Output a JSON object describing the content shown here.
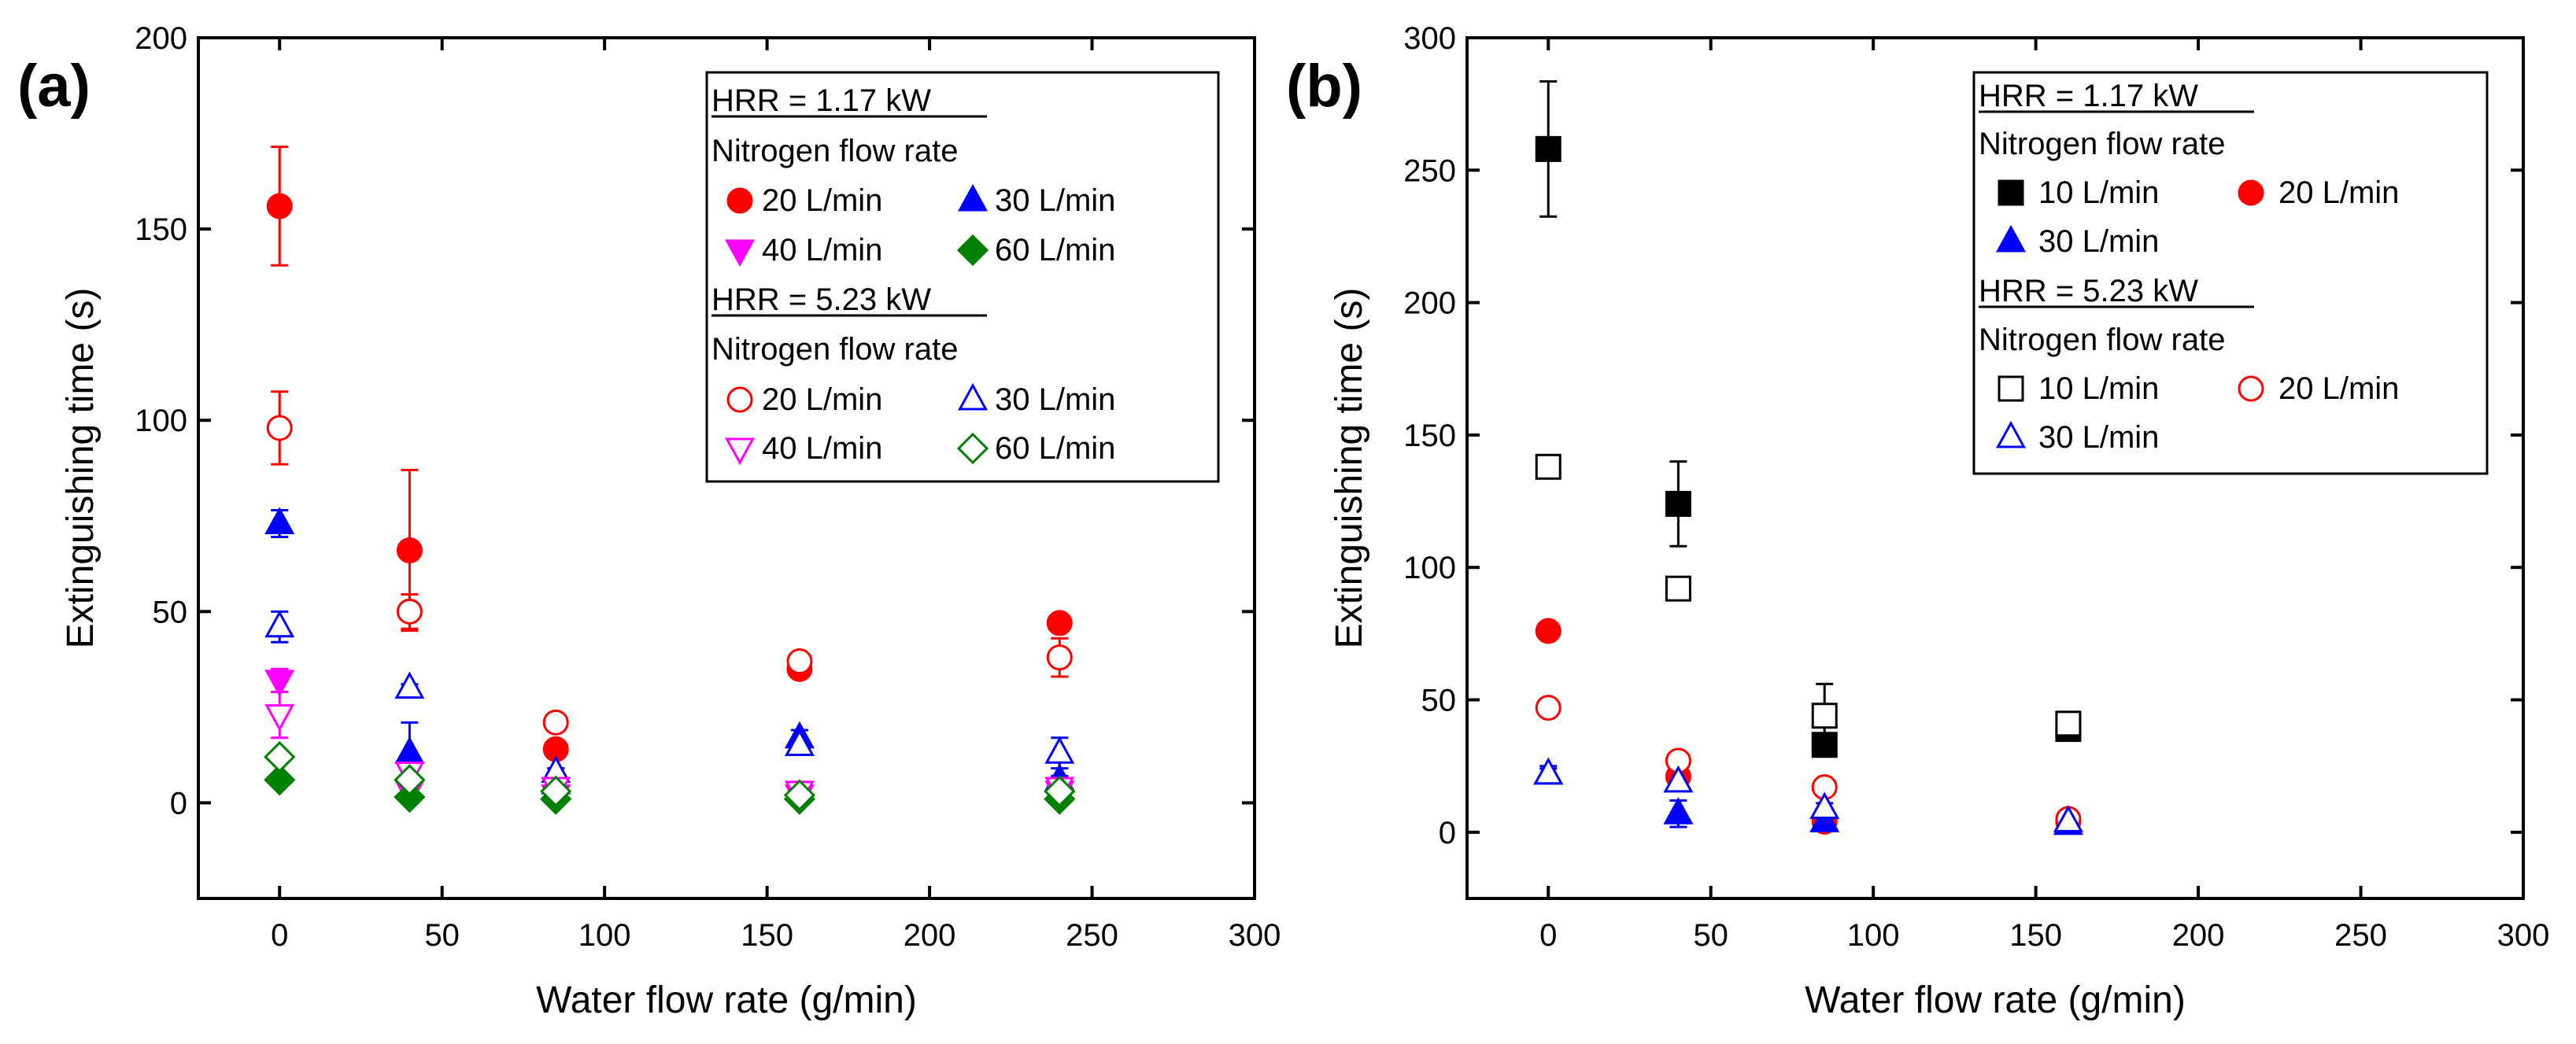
{
  "chart_data": [
    {
      "type": "scatter",
      "panel_label": "(a)",
      "xlabel": "Water flow rate (g/min)",
      "ylabel": "Extinguishing time (s)",
      "xlim": [
        -25,
        300
      ],
      "ylim": [
        -25,
        200
      ],
      "xticks": [
        0,
        50,
        100,
        150,
        200,
        250,
        300
      ],
      "yticks": [
        0,
        50,
        100,
        150,
        200
      ],
      "legend_position": "top-right",
      "legend": {
        "group1_title": "HRR = 1.17 kW",
        "group1_subtitle": "Nitrogen flow rate",
        "group2_title": "HRR = 5.23 kW",
        "group2_subtitle": "Nitrogen flow rate"
      },
      "series": [
        {
          "name": "20 L/min",
          "group": 1,
          "marker": "circle",
          "filled": true,
          "color": "#ff0000",
          "x": [
            0,
            40,
            85,
            160,
            240
          ],
          "y": [
            156,
            66,
            14,
            35,
            47
          ],
          "err": [
            15.5,
            21,
            2,
            2,
            2
          ]
        },
        {
          "name": "30 L/min",
          "group": 1,
          "marker": "triangle-up",
          "filled": true,
          "color": "#0000ff",
          "x": [
            0,
            40,
            85,
            160,
            240
          ],
          "y": [
            73,
            13,
            5,
            17,
            6
          ],
          "err": [
            3.5,
            8,
            1,
            2,
            1
          ]
        },
        {
          "name": "40 L/min",
          "group": 1,
          "marker": "triangle-down",
          "filled": true,
          "color": "#ff00ff",
          "x": [
            0,
            40,
            85,
            160,
            240
          ],
          "y": [
            32,
            3,
            2,
            2,
            3
          ],
          "err": [
            3,
            1,
            0.5,
            0.5,
            0.5
          ]
        },
        {
          "name": "60 L/min",
          "group": 1,
          "marker": "diamond",
          "filled": true,
          "color": "#008000",
          "x": [
            0,
            40,
            85,
            160,
            240
          ],
          "y": [
            6,
            1.5,
            1,
            1,
            1
          ],
          "err": [
            1,
            0.5,
            0.5,
            0.5,
            0.5
          ]
        },
        {
          "name": "20 L/min",
          "group": 2,
          "marker": "circle",
          "filled": false,
          "color": "#ff0000",
          "x": [
            0,
            40,
            85,
            160,
            240
          ],
          "y": [
            98,
            50,
            21,
            37,
            38
          ],
          "err": [
            9.5,
            4.5,
            2,
            2,
            5
          ]
        },
        {
          "name": "30 L/min",
          "group": 2,
          "marker": "triangle-up",
          "filled": false,
          "color": "#0000ff",
          "x": [
            0,
            40,
            85,
            160,
            240
          ],
          "y": [
            46,
            30,
            8,
            15,
            13
          ],
          "err": [
            4,
            1,
            1,
            1.5,
            4
          ]
        },
        {
          "name": "40 L/min",
          "group": 2,
          "marker": "triangle-down",
          "filled": false,
          "color": "#ff00ff",
          "x": [
            0,
            40,
            85,
            160,
            240
          ],
          "y": [
            23,
            8,
            4,
            3,
            4
          ],
          "err": [
            6,
            2,
            1,
            1,
            1
          ]
        },
        {
          "name": "60 L/min",
          "group": 2,
          "marker": "diamond",
          "filled": false,
          "color": "#008000",
          "x": [
            0,
            40,
            85,
            160,
            240
          ],
          "y": [
            12,
            6,
            3,
            2,
            3
          ],
          "err": [
            1,
            1,
            0.5,
            0.5,
            0.5
          ]
        }
      ]
    },
    {
      "type": "scatter",
      "panel_label": "(b)",
      "xlabel": "Water flow rate (g/min)",
      "ylabel": "Extinguishing time (s)",
      "xlim": [
        -25,
        300
      ],
      "ylim": [
        -25,
        300
      ],
      "xticks": [
        0,
        50,
        100,
        150,
        200,
        250,
        300
      ],
      "yticks": [
        0,
        50,
        100,
        150,
        200,
        250,
        300
      ],
      "legend_position": "top-right",
      "legend": {
        "group1_title": "HRR = 1.17 kW",
        "group1_subtitle": "Nitrogen flow rate",
        "group2_title": "HRR = 5.23 kW",
        "group2_subtitle": "Nitrogen flow rate"
      },
      "series": [
        {
          "name": "10 L/min",
          "group": 1,
          "marker": "square",
          "filled": true,
          "color": "#000000",
          "x": [
            0,
            40,
            85,
            160
          ],
          "y": [
            258,
            124,
            33,
            39
          ],
          "err": [
            25.5,
            16,
            3,
            2
          ]
        },
        {
          "name": "20 L/min",
          "group": 1,
          "marker": "circle",
          "filled": true,
          "color": "#ff0000",
          "x": [
            0,
            40,
            85,
            160
          ],
          "y": [
            76,
            21,
            4,
            4
          ],
          "err": [
            3,
            2,
            1,
            1
          ]
        },
        {
          "name": "30 L/min",
          "group": 1,
          "marker": "triangle-up",
          "filled": true,
          "color": "#0000ff",
          "x": [
            0,
            40,
            85,
            160
          ],
          "y": [
            22,
            7,
            4,
            3
          ],
          "err": [
            2,
            5,
            2,
            1
          ]
        },
        {
          "name": "10 L/min",
          "group": 2,
          "marker": "square",
          "filled": false,
          "color": "#000000",
          "x": [
            0,
            40,
            85,
            160
          ],
          "y": [
            138,
            92,
            44,
            41
          ],
          "err": [
            3,
            4,
            12,
            2
          ]
        },
        {
          "name": "20 L/min",
          "group": 2,
          "marker": "circle",
          "filled": false,
          "color": "#ff0000",
          "x": [
            0,
            40,
            85,
            160
          ],
          "y": [
            47,
            27,
            17,
            5
          ],
          "err": [
            2,
            3,
            1,
            1
          ]
        },
        {
          "name": "30 L/min",
          "group": 2,
          "marker": "triangle-up",
          "filled": false,
          "color": "#0000ff",
          "x": [
            0,
            40,
            85,
            160
          ],
          "y": [
            22,
            19,
            9,
            4
          ],
          "err": [
            3,
            2,
            2,
            1
          ]
        }
      ]
    }
  ]
}
